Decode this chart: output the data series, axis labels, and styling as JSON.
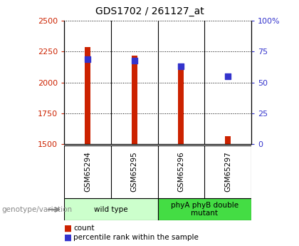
{
  "title": "GDS1702 / 261127_at",
  "samples": [
    "GSM65294",
    "GSM65295",
    "GSM65296",
    "GSM65297"
  ],
  "count_values": [
    2290,
    2220,
    2150,
    1560
  ],
  "percentile_values": [
    69,
    68,
    63,
    55
  ],
  "ylim_left": [
    1500,
    2500
  ],
  "ylim_right": [
    0,
    100
  ],
  "yticks_left": [
    1500,
    1750,
    2000,
    2250,
    2500
  ],
  "yticks_right": [
    0,
    25,
    50,
    75,
    100
  ],
  "ytick_labels_right": [
    "0",
    "25",
    "50",
    "75",
    "100%"
  ],
  "bar_color": "#cc2200",
  "dot_color": "#3333cc",
  "bar_width": 0.12,
  "groups": [
    {
      "label": "wild type",
      "indices": [
        0,
        1
      ],
      "color": "#ccffcc"
    },
    {
      "label": "phyA phyB double\nmutant",
      "indices": [
        2,
        3
      ],
      "color": "#44dd44"
    }
  ],
  "genotype_label": "genotype/variation",
  "legend_count_label": "count",
  "legend_pct_label": "percentile rank within the sample",
  "ax_left_color": "#cc2200",
  "ax_right_color": "#3333cc",
  "sample_box_color": "#cccccc",
  "background_color": "#ffffff"
}
